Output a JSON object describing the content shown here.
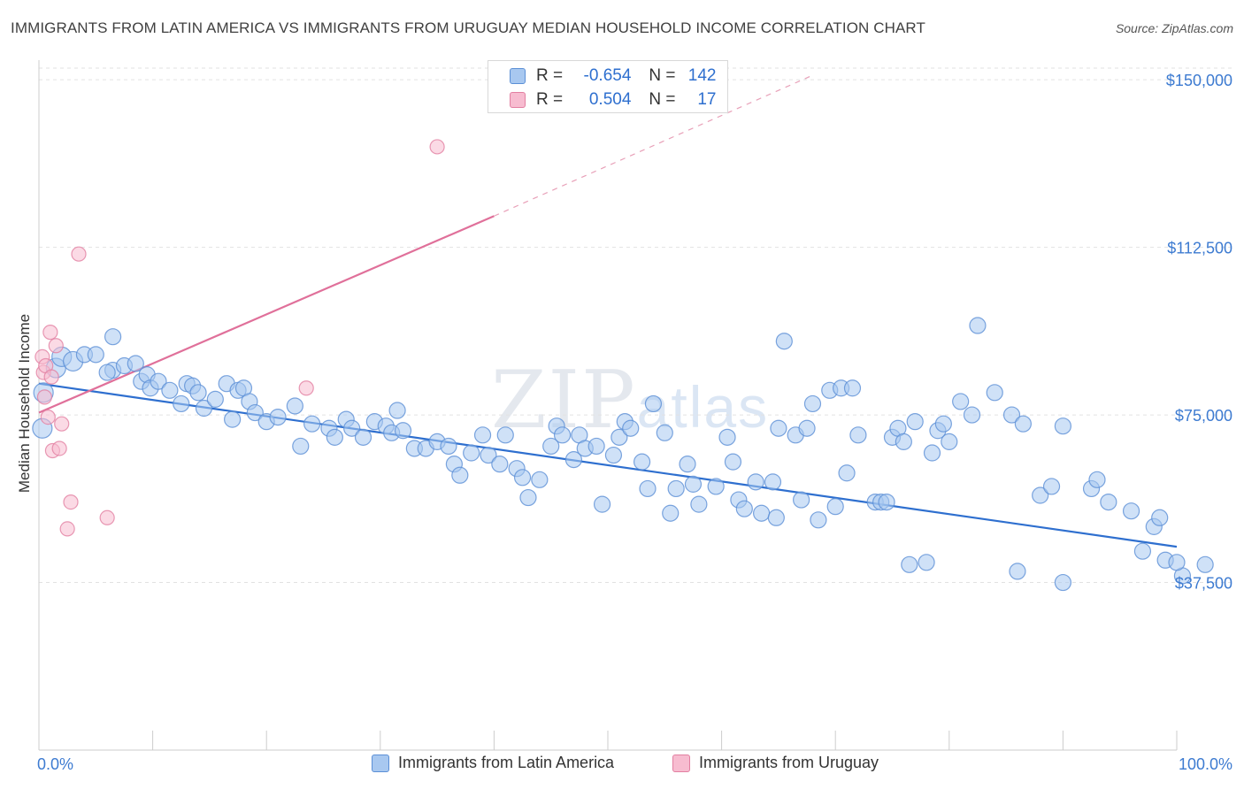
{
  "title": "IMMIGRANTS FROM LATIN AMERICA VS IMMIGRANTS FROM URUGUAY MEDIAN HOUSEHOLD INCOME CORRELATION CHART",
  "source": "Source: ZipAtlas.com",
  "watermark": {
    "zip": "ZIP",
    "atlas": "atlas"
  },
  "legend": {
    "rows": [
      {
        "r_label": "R =",
        "r_value": "-0.654",
        "n_label": "N =",
        "n_value": "142",
        "color": "#a8c8f0",
        "border": "#5b8fd6"
      },
      {
        "r_label": "R =",
        "r_value": "0.504",
        "n_label": "N =",
        "n_value": "17",
        "color": "#f7bcd0",
        "border": "#e27fa1"
      }
    ]
  },
  "bottom_legend": [
    {
      "label": "Immigrants from Latin America",
      "color": "#a8c8f0",
      "border": "#5b8fd6"
    },
    {
      "label": "Immigrants from Uruguay",
      "color": "#f7bcd0",
      "border": "#e27fa1"
    }
  ],
  "chart_data": {
    "type": "scatter",
    "title": "IMMIGRANTS FROM LATIN AMERICA VS IMMIGRANTS FROM URUGUAY MEDIAN HOUSEHOLD INCOME CORRELATION CHART",
    "xlabel": "",
    "ylabel": "Median Household Income",
    "xlim": [
      0,
      100
    ],
    "ylim": [
      0,
      153000
    ],
    "x_tick_labels": [
      "0.0%",
      "100.0%"
    ],
    "y_ticks": [
      37500,
      75000,
      112500,
      150000
    ],
    "y_tick_labels": [
      "$37,500",
      "$75,000",
      "$112,500",
      "$150,000"
    ],
    "grid": "horizontal dashed",
    "legend_position": "top-center",
    "series": [
      {
        "name": "Immigrants from Latin America",
        "color": "#5b8fd6",
        "fill": "#a8c8f0",
        "trend": {
          "x": [
            0,
            100
          ],
          "y": [
            82000,
            45500
          ],
          "style": "solid"
        },
        "points": [
          [
            0.3,
            72000
          ],
          [
            0.4,
            80000
          ],
          [
            1.5,
            85500
          ],
          [
            2.0,
            88000
          ],
          [
            3.0,
            87000
          ],
          [
            4.0,
            88500
          ],
          [
            5.0,
            88500
          ],
          [
            6.5,
            85000
          ],
          [
            6.0,
            84500
          ],
          [
            6.5,
            92500
          ],
          [
            7.5,
            86000
          ],
          [
            8.5,
            86500
          ],
          [
            9.0,
            82500
          ],
          [
            9.5,
            84000
          ],
          [
            9.8,
            81000
          ],
          [
            10.5,
            82500
          ],
          [
            11.5,
            80500
          ],
          [
            12.5,
            77500
          ],
          [
            13.0,
            82000
          ],
          [
            13.5,
            81500
          ],
          [
            14.0,
            80000
          ],
          [
            14.5,
            76500
          ],
          [
            15.5,
            78500
          ],
          [
            16.5,
            82000
          ],
          [
            17.0,
            74000
          ],
          [
            17.5,
            80500
          ],
          [
            18.0,
            81000
          ],
          [
            18.5,
            78000
          ],
          [
            19.0,
            75500
          ],
          [
            20.0,
            73500
          ],
          [
            21.0,
            74500
          ],
          [
            22.5,
            77000
          ],
          [
            23.0,
            68000
          ],
          [
            24.0,
            73000
          ],
          [
            25.5,
            72000
          ],
          [
            26.0,
            70000
          ],
          [
            27.0,
            74000
          ],
          [
            27.5,
            72000
          ],
          [
            28.5,
            70000
          ],
          [
            29.5,
            73500
          ],
          [
            30.5,
            72500
          ],
          [
            31.5,
            76000
          ],
          [
            31.0,
            71000
          ],
          [
            32.0,
            71500
          ],
          [
            33.0,
            67500
          ],
          [
            34.0,
            67500
          ],
          [
            35.0,
            69000
          ],
          [
            36.0,
            68000
          ],
          [
            36.5,
            64000
          ],
          [
            37.0,
            61500
          ],
          [
            38.0,
            66500
          ],
          [
            39.0,
            70500
          ],
          [
            39.5,
            66000
          ],
          [
            40.5,
            64000
          ],
          [
            41.0,
            70500
          ],
          [
            42.0,
            63000
          ],
          [
            42.5,
            61000
          ],
          [
            43.0,
            56500
          ],
          [
            44.0,
            60500
          ],
          [
            45.0,
            68000
          ],
          [
            45.5,
            72500
          ],
          [
            46.0,
            70500
          ],
          [
            47.0,
            65000
          ],
          [
            47.5,
            70500
          ],
          [
            48.0,
            67500
          ],
          [
            49.0,
            68000
          ],
          [
            49.5,
            55000
          ],
          [
            50.5,
            66000
          ],
          [
            51.0,
            70000
          ],
          [
            51.5,
            73500
          ],
          [
            52.0,
            72000
          ],
          [
            53.0,
            64500
          ],
          [
            53.5,
            58500
          ],
          [
            54.0,
            77500
          ],
          [
            55.0,
            71000
          ],
          [
            55.5,
            53000
          ],
          [
            56.0,
            58500
          ],
          [
            57.0,
            64000
          ],
          [
            57.5,
            59500
          ],
          [
            58.0,
            55000
          ],
          [
            59.5,
            59000
          ],
          [
            60.5,
            70000
          ],
          [
            61.0,
            64500
          ],
          [
            61.5,
            56000
          ],
          [
            62.0,
            54000
          ],
          [
            63.0,
            60000
          ],
          [
            63.5,
            53000
          ],
          [
            64.5,
            60000
          ],
          [
            64.8,
            52000
          ],
          [
            65.0,
            72000
          ],
          [
            65.5,
            91500
          ],
          [
            66.5,
            70500
          ],
          [
            67.0,
            56000
          ],
          [
            67.5,
            72000
          ],
          [
            68.0,
            77500
          ],
          [
            68.5,
            51500
          ],
          [
            69.5,
            80500
          ],
          [
            70.0,
            54500
          ],
          [
            70.5,
            81000
          ],
          [
            71.0,
            62000
          ],
          [
            71.5,
            81000
          ],
          [
            72.0,
            70500
          ],
          [
            73.5,
            55500
          ],
          [
            74.0,
            55500
          ],
          [
            74.5,
            55500
          ],
          [
            75.0,
            70000
          ],
          [
            75.5,
            72000
          ],
          [
            76.0,
            69000
          ],
          [
            76.5,
            41500
          ],
          [
            77.0,
            73500
          ],
          [
            78.0,
            42000
          ],
          [
            78.5,
            66500
          ],
          [
            79.0,
            71500
          ],
          [
            79.5,
            73000
          ],
          [
            80.0,
            69000
          ],
          [
            81.0,
            78000
          ],
          [
            82.0,
            75000
          ],
          [
            82.5,
            95000
          ],
          [
            84.0,
            80000
          ],
          [
            85.5,
            75000
          ],
          [
            86.0,
            40000
          ],
          [
            86.5,
            73000
          ],
          [
            88.0,
            57000
          ],
          [
            89.0,
            59000
          ],
          [
            90.0,
            37500
          ],
          [
            90.0,
            72500
          ],
          [
            92.5,
            58500
          ],
          [
            93.0,
            60500
          ],
          [
            94.0,
            55500
          ],
          [
            96.0,
            53500
          ],
          [
            97.0,
            44500
          ],
          [
            98.0,
            50000
          ],
          [
            98.5,
            52000
          ],
          [
            99.0,
            42500
          ],
          [
            100.5,
            39000
          ],
          [
            102.5,
            41500
          ],
          [
            100.0,
            42000
          ]
        ]
      },
      {
        "name": "Immigrants from Uruguay",
        "color": "#e27fa1",
        "fill": "#f7bcd0",
        "trend": {
          "x": [
            0,
            40
          ],
          "y": [
            75500,
            119500
          ],
          "style": "solid",
          "extended_to_x": 68,
          "extended_y": 151000,
          "extension_style": "dashed"
        },
        "points": [
          [
            0.3,
            88000
          ],
          [
            0.4,
            84500
          ],
          [
            0.5,
            79000
          ],
          [
            0.6,
            86000
          ],
          [
            0.8,
            74500
          ],
          [
            1.0,
            93500
          ],
          [
            1.2,
            67000
          ],
          [
            1.5,
            90500
          ],
          [
            1.8,
            67500
          ],
          [
            2.0,
            73000
          ],
          [
            2.5,
            49500
          ],
          [
            2.8,
            55500
          ],
          [
            3.5,
            111000
          ],
          [
            6.0,
            52000
          ],
          [
            23.5,
            81000
          ],
          [
            35.0,
            135000
          ],
          [
            1.1,
            83500
          ]
        ]
      }
    ]
  }
}
